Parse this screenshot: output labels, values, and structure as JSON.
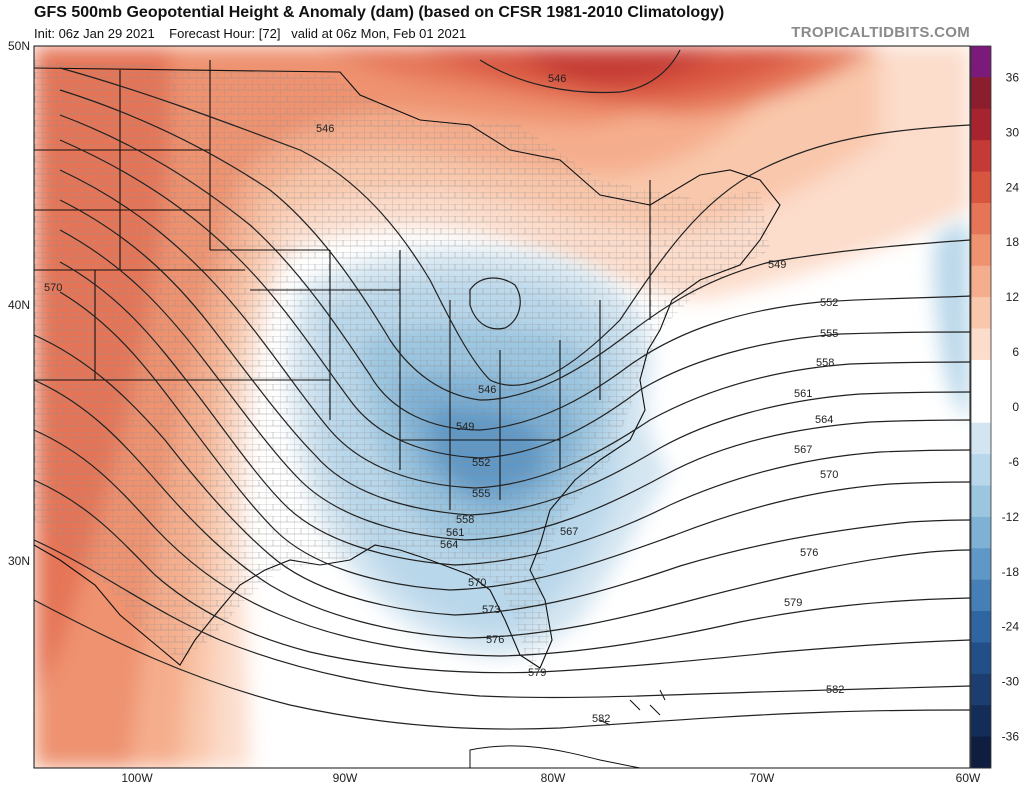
{
  "header": {
    "title": "GFS 500mb Geopotential Height & Anomaly (dam) (based on CFSR 1981-2010 Climatology)",
    "init": "Init: 06z Jan 29 2021",
    "forecast_hour": "Forecast Hour: [72]",
    "valid": "valid at 06z Mon, Feb 01 2021",
    "brand": "TROPICALTIDBITS.COM"
  },
  "axes": {
    "lat_labels": [
      "50N",
      "40N",
      "30N"
    ],
    "lon_labels": [
      "100W",
      "90W",
      "80W",
      "70W",
      "60W"
    ]
  },
  "colorbar": {
    "labels": [
      "36",
      "30",
      "24",
      "18",
      "12",
      "6",
      "0",
      "-6",
      "-12",
      "-18",
      "-24",
      "-30",
      "-36"
    ],
    "colors": [
      "#7b1a7b",
      "#8c1d2d",
      "#a82330",
      "#c43a36",
      "#d8553f",
      "#e57556",
      "#ee9270",
      "#f5ae8d",
      "#f9c7ab",
      "#fcdccb",
      "#ffffff",
      "#ffffff",
      "#d3e5f1",
      "#b9d7ea",
      "#9cc6e0",
      "#7fb1d5",
      "#5f98c6",
      "#457fb5",
      "#2f65a0",
      "#234f88",
      "#1b3d70",
      "#142c58",
      "#0e1d40"
    ]
  },
  "contours": {
    "labels": [
      "546",
      "546",
      "549",
      "552",
      "555",
      "558",
      "561",
      "564",
      "567",
      "570",
      "570",
      "576",
      "579",
      "582",
      "582",
      "570",
      "546",
      "549",
      "552",
      "555",
      "558",
      "561",
      "564",
      "567",
      "570",
      "573",
      "576",
      "579"
    ]
  },
  "map_colors": {
    "ocean": "#ffffff",
    "land_outline": "#111111",
    "county_line": "#8e8e8e",
    "contour": "#222222"
  }
}
